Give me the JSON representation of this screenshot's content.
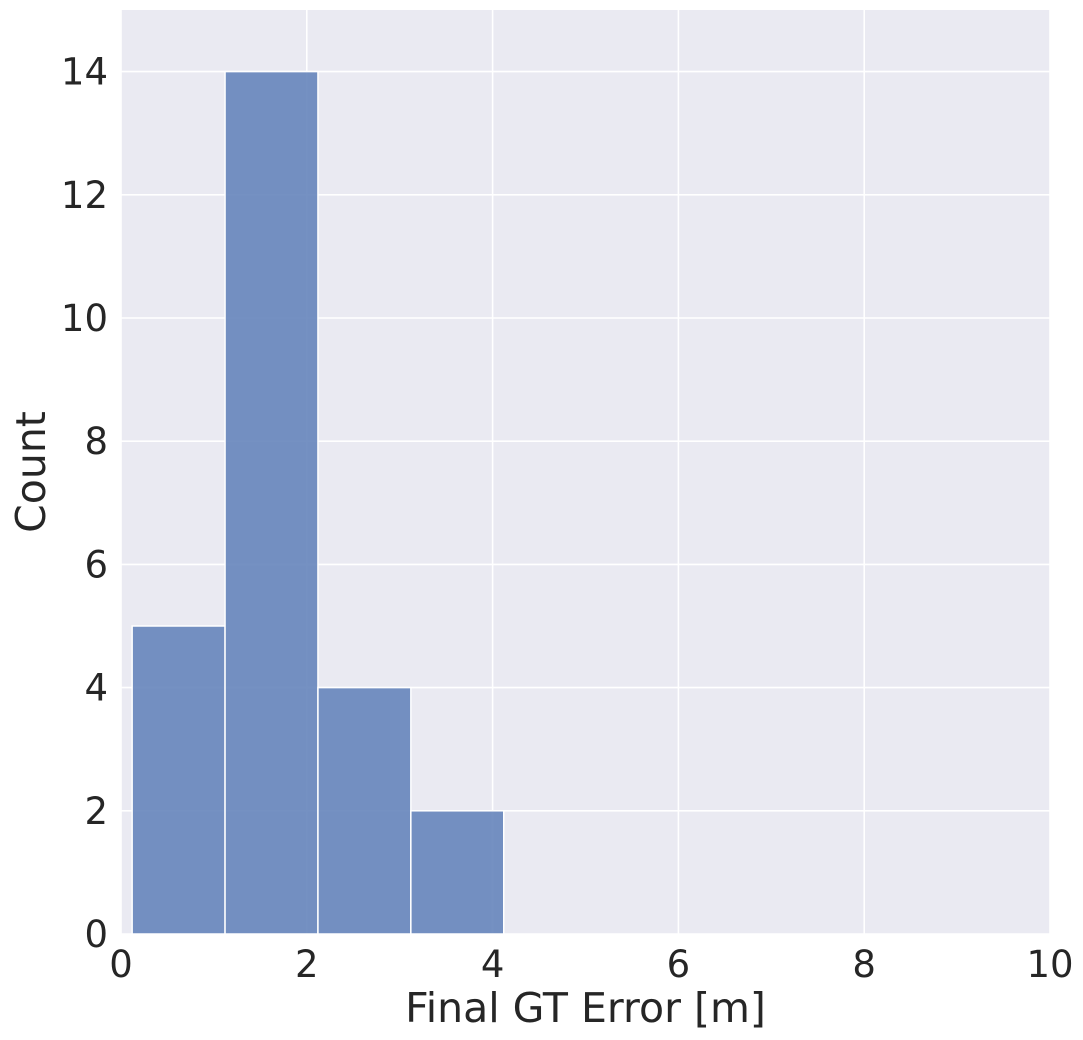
{
  "chart_data": {
    "type": "bar",
    "subtype": "histogram",
    "title": "",
    "xlabel": "Final GT Error [m]",
    "ylabel": "Count",
    "xlim": [
      0,
      10
    ],
    "ylim": [
      0,
      15
    ],
    "xticks": [
      0,
      2,
      4,
      6,
      8,
      10
    ],
    "yticks": [
      0,
      2,
      4,
      6,
      8,
      10,
      12,
      14
    ],
    "bins": [
      {
        "x0": 0.12,
        "x1": 1.12,
        "count": 5
      },
      {
        "x0": 1.12,
        "x1": 2.12,
        "count": 14
      },
      {
        "x0": 2.12,
        "x1": 3.12,
        "count": 4
      },
      {
        "x0": 3.12,
        "x1": 4.12,
        "count": 2
      }
    ],
    "grid": true,
    "colors": {
      "background": "#eaeaf2",
      "grid": "#ffffff",
      "bar": "#6685bb",
      "bar_edge": "#ffffff",
      "text": "#262626"
    }
  }
}
